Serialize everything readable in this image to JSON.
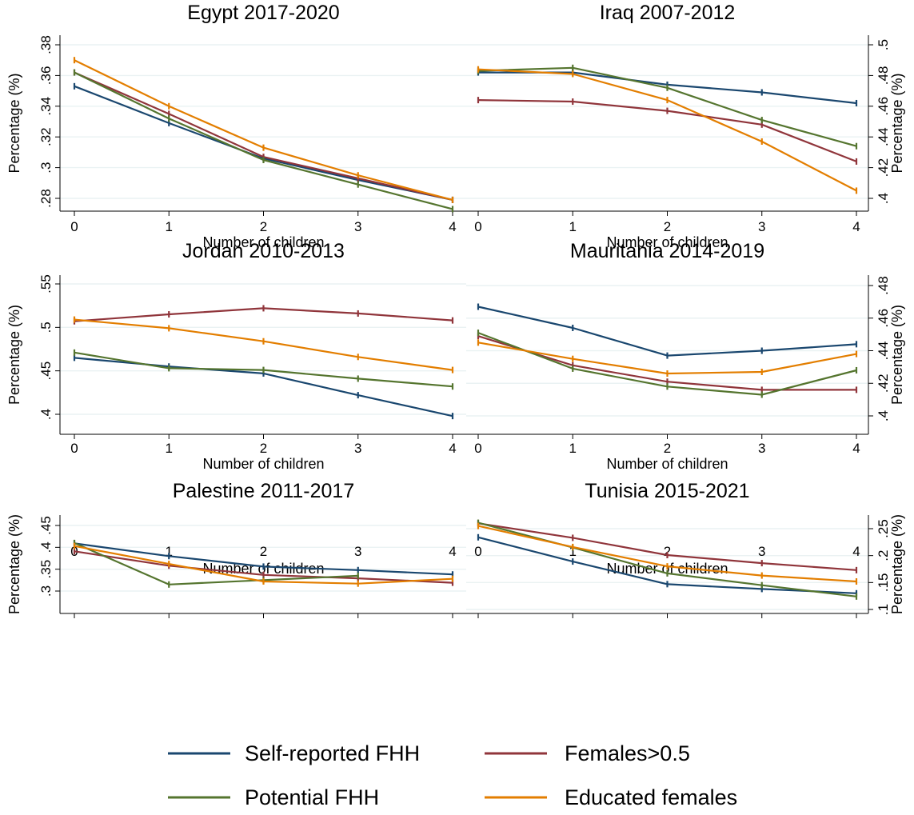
{
  "chart_data": [
    {
      "type": "line",
      "title": "Egypt 2017-2020",
      "xlabel": "Number of children",
      "ylabel": "Percentage (%)",
      "x": [
        0,
        1,
        2,
        3,
        4
      ],
      "xticks": [
        "0",
        "1",
        "2",
        "3",
        "4"
      ],
      "yticks": [
        0.28,
        0.3,
        0.32,
        0.34,
        0.36,
        0.38
      ],
      "ytick_labels": [
        ".28",
        ".3",
        ".32",
        ".34",
        ".36",
        ".38"
      ],
      "ylim": [
        0.268,
        0.392
      ],
      "y_axis_side": "left",
      "series": [
        {
          "name": "Self-reported FHH",
          "values": [
            0.353,
            0.329,
            0.306,
            0.292,
            0.279
          ]
        },
        {
          "name": "Females>0.5",
          "values": [
            0.362,
            0.335,
            0.307,
            0.293,
            0.279
          ]
        },
        {
          "name": "Potential FHH",
          "values": [
            0.362,
            0.332,
            0.305,
            0.289,
            0.273
          ]
        },
        {
          "name": "Educated females",
          "values": [
            0.37,
            0.34,
            0.313,
            0.295,
            0.279
          ]
        }
      ]
    },
    {
      "type": "line",
      "title": "Iraq 2007-2012",
      "xlabel": "Number of children",
      "ylabel": "Percentage (%)",
      "x": [
        0,
        1,
        2,
        3,
        4
      ],
      "xticks": [
        "0",
        "1",
        "2",
        "3",
        "4"
      ],
      "yticks": [
        0.4,
        0.42,
        0.44,
        0.46,
        0.48,
        0.5
      ],
      "ytick_labels": [
        ".4",
        ".42",
        ".44",
        ".46",
        ".48",
        ".5"
      ],
      "ylim": [
        0.392,
        0.516
      ],
      "y_axis_side": "right",
      "series": [
        {
          "name": "Self-reported FHH",
          "values": [
            0.482,
            0.482,
            0.474,
            0.469,
            0.462
          ]
        },
        {
          "name": "Females>0.5",
          "values": [
            0.464,
            0.463,
            0.457,
            0.448,
            0.424
          ]
        },
        {
          "name": "Potential FHH",
          "values": [
            0.483,
            0.485,
            0.472,
            0.451,
            0.434
          ]
        },
        {
          "name": "Educated females",
          "values": [
            0.484,
            0.481,
            0.464,
            0.437,
            0.405
          ]
        }
      ]
    },
    {
      "type": "line",
      "title": "Jordan 2010-2013",
      "xlabel": "Number of children",
      "ylabel": "Percentage (%)",
      "x": [
        0,
        1,
        2,
        3,
        4
      ],
      "xticks": [
        "0",
        "1",
        "2",
        "3",
        "4"
      ],
      "yticks": [
        0.4,
        0.45,
        0.5,
        0.55
      ],
      "ytick_labels": [
        ".4",
        ".45",
        ".5",
        ".55"
      ],
      "ylim": [
        0.385,
        0.575
      ],
      "y_axis_side": "left",
      "series": [
        {
          "name": "Self-reported FHH",
          "values": [
            0.465,
            0.455,
            0.447,
            0.422,
            0.398
          ]
        },
        {
          "name": "Females>0.5",
          "values": [
            0.507,
            0.515,
            0.522,
            0.516,
            0.508
          ]
        },
        {
          "name": "Potential FHH",
          "values": [
            0.471,
            0.453,
            0.451,
            0.441,
            0.432
          ]
        },
        {
          "name": "Educated females",
          "values": [
            0.509,
            0.499,
            0.484,
            0.466,
            0.451
          ]
        }
      ]
    },
    {
      "type": "line",
      "title": "Mauritania 2014-2019",
      "xlabel": "Number of children",
      "ylabel": "Percentage (%)",
      "x": [
        0,
        1,
        2,
        3,
        4
      ],
      "xticks": [
        "0",
        "1",
        "2",
        "3",
        "4"
      ],
      "yticks": [
        0.4,
        0.42,
        0.44,
        0.46,
        0.48
      ],
      "ytick_labels": [
        ".4",
        ".42",
        ".44",
        ".46",
        ".48"
      ],
      "ylim": [
        0.39,
        0.492
      ],
      "y_axis_side": "right",
      "series": [
        {
          "name": "Self-reported FHH",
          "values": [
            0.467,
            0.454,
            0.437,
            0.44,
            0.444
          ]
        },
        {
          "name": "Females>0.5",
          "values": [
            0.449,
            0.431,
            0.421,
            0.416,
            0.416
          ]
        },
        {
          "name": "Potential FHH",
          "values": [
            0.451,
            0.429,
            0.418,
            0.413,
            0.428
          ]
        },
        {
          "name": "Educated females",
          "values": [
            0.445,
            0.435,
            0.426,
            0.427,
            0.438
          ]
        }
      ]
    },
    {
      "type": "line",
      "title": "Palestine 2011-2017",
      "xlabel": "Number of children",
      "ylabel": "Percentage (%)",
      "x": [
        0,
        1,
        2,
        3,
        4
      ],
      "xticks": [
        "0",
        "1",
        "2",
        "3",
        "4"
      ],
      "yticks": [
        0.3,
        0.35,
        0.4,
        0.45
      ],
      "ytick_labels": [
        ".3",
        ".35",
        ".4",
        ".45"
      ],
      "ylim": [
        0.288,
        0.46
      ],
      "y_axis_side": "left",
      "series": [
        {
          "name": "Self-reported FHH",
          "values": [
            0.409,
            0.38,
            0.356,
            0.348,
            0.338
          ]
        },
        {
          "name": "Females>0.5",
          "values": [
            0.391,
            0.358,
            0.337,
            0.329,
            0.319
          ]
        },
        {
          "name": "Potential FHH",
          "values": [
            0.41,
            0.315,
            0.325,
            0.335,
            null
          ]
        },
        {
          "name": "Educated females",
          "values": [
            0.403,
            0.362,
            0.322,
            0.317,
            0.328
          ]
        }
      ]
    },
    {
      "type": "line",
      "title": "Tunisia 2015-2021",
      "xlabel": "Number of children",
      "ylabel": "Percentage (%)",
      "x": [
        0,
        1,
        2,
        3,
        4
      ],
      "xticks": [
        "0",
        "1",
        "2",
        "3",
        "4"
      ],
      "yticks": [
        0.1,
        0.15,
        0.2,
        0.25
      ],
      "ytick_labels": [
        ".1",
        ".15",
        ".2",
        ".25"
      ],
      "ylim": [
        0.088,
        0.285
      ],
      "y_axis_side": "right",
      "series": [
        {
          "name": "Self-reported FHH",
          "values": [
            0.234,
            0.189,
            0.147,
            0.138,
            0.13
          ]
        },
        {
          "name": "Females>0.5",
          "values": [
            0.26,
            0.233,
            0.201,
            0.186,
            0.173
          ]
        },
        {
          "name": "Potential FHH",
          "values": [
            0.261,
            0.215,
            0.167,
            0.145,
            0.124
          ]
        },
        {
          "name": "Educated females",
          "values": [
            0.255,
            0.216,
            0.18,
            0.163,
            0.152
          ]
        }
      ]
    }
  ],
  "legend": {
    "placement": "bottom",
    "items": [
      {
        "label": "Self-reported FHH",
        "color": "#1a476f"
      },
      {
        "label": "Females>0.5",
        "color": "#90353b"
      },
      {
        "label": "Potential FHH",
        "color": "#55752f"
      },
      {
        "label": "Educated females",
        "color": "#e37e00"
      }
    ]
  },
  "colors": {
    "series": [
      "#1a476f",
      "#90353b",
      "#55752f",
      "#e37e00"
    ],
    "grid": "#eaf2f3"
  }
}
